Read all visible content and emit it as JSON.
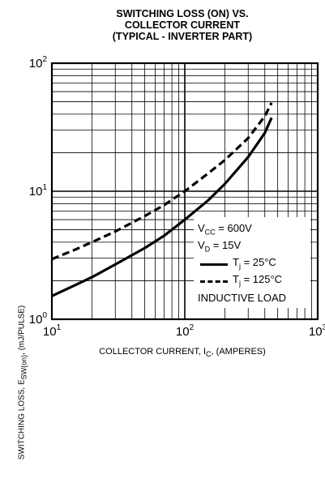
{
  "chart_data": {
    "type": "line",
    "title_lines": [
      "SWITCHING LOSS (ON) VS.",
      "COLLECTOR CURRENT",
      "(TYPICAL - INVERTER PART)"
    ],
    "xlabel_main": "COLLECTOR CURRENT, I",
    "xlabel_sub": "C",
    "xlabel_tail": ", (AMPERES)",
    "ylabel_main": "SWITCHING LOSS, E",
    "ylabel_sub": "SW(on)",
    "ylabel_tail": ",  (mJ/PULSE)",
    "x_scale": "log",
    "y_scale": "log",
    "xlim": [
      10,
      1000
    ],
    "ylim": [
      1,
      100
    ],
    "x_ticks": [
      {
        "base": "10",
        "exp": "1"
      },
      {
        "base": "10",
        "exp": "2"
      },
      {
        "base": "10",
        "exp": "3"
      }
    ],
    "y_ticks": [
      {
        "base": "10",
        "exp": "0"
      },
      {
        "base": "10",
        "exp": "1"
      },
      {
        "base": "10",
        "exp": "2"
      }
    ],
    "grid": true,
    "series": [
      {
        "name": "Tj = 25°C",
        "style": "solid",
        "x": [
          10,
          15,
          20,
          30,
          50,
          70,
          100,
          150,
          200,
          300,
          400,
          450
        ],
        "y": [
          1.52,
          1.85,
          2.13,
          2.68,
          3.6,
          4.5,
          6.0,
          8.5,
          11.4,
          18.5,
          28.5,
          37.5
        ]
      },
      {
        "name": "Tj = 125°C",
        "style": "dashed",
        "x": [
          10,
          15,
          20,
          30,
          50,
          70,
          100,
          150,
          200,
          300,
          400,
          450
        ],
        "y": [
          2.95,
          3.5,
          4.0,
          4.85,
          6.4,
          7.8,
          10.0,
          13.8,
          17.5,
          26.0,
          38.5,
          49.0
        ]
      }
    ],
    "legend": {
      "vcc_label": "V",
      "vcc_sub": "CC",
      "vcc_value": " = 600V",
      "vd_label": "V",
      "vd_sub": "D",
      "vd_value": " = 15V",
      "s1_pre": "T",
      "s1_sub": "j",
      "s1_value": " = 25°C",
      "s2_pre": "T",
      "s2_sub": "j",
      "s2_value": " = 125°C",
      "note": "INDUCTIVE LOAD",
      "placement": "bottom-right"
    }
  }
}
